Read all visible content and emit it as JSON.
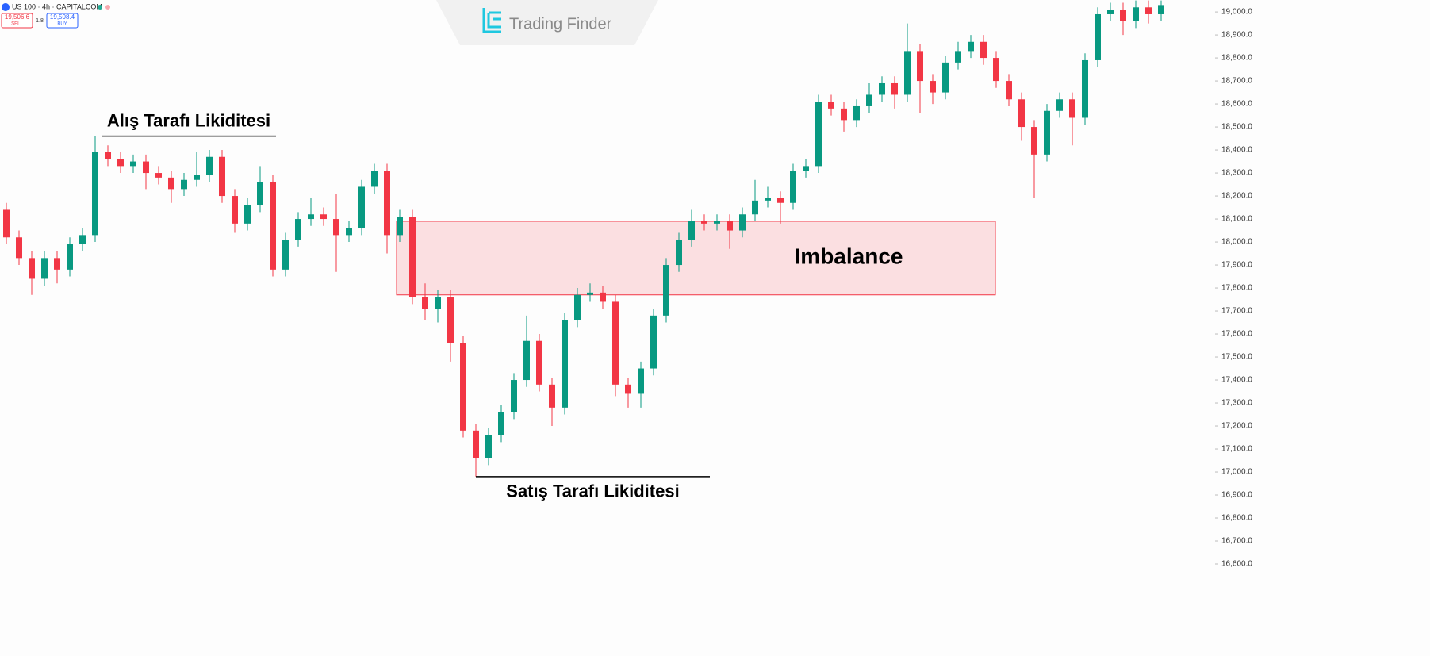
{
  "header": {
    "symbol": "US 100 · 4h · CAPITALCOM",
    "sell_price": "19,506.6",
    "sell_label": "SELL",
    "spread": "1.8",
    "buy_price": "19,508.4",
    "buy_label": "BUY",
    "logo": "Trading Finder"
  },
  "chart_data": {
    "type": "candlestick",
    "up_color": "#089981",
    "down_color": "#f23645",
    "ylim": [
      16200,
      19052
    ],
    "yticks": [
      {
        "value": 19000,
        "label": "19,000.0"
      },
      {
        "value": 18900,
        "label": "18,900.0"
      },
      {
        "value": 18800,
        "label": "18,800.0"
      },
      {
        "value": 18700,
        "label": "18,700.0"
      },
      {
        "value": 18600,
        "label": "18,600.0"
      },
      {
        "value": 18500,
        "label": "18,500.0"
      },
      {
        "value": 18400,
        "label": "18,400.0"
      },
      {
        "value": 18300,
        "label": "18,300.0"
      },
      {
        "value": 18200,
        "label": "18,200.0"
      },
      {
        "value": 18100,
        "label": "18,100.0"
      },
      {
        "value": 18000,
        "label": "18,000.0"
      },
      {
        "value": 17900,
        "label": "17,900.0"
      },
      {
        "value": 17800,
        "label": "17,800.0"
      },
      {
        "value": 17700,
        "label": "17,700.0"
      },
      {
        "value": 17600,
        "label": "17,600.0"
      },
      {
        "value": 17500,
        "label": "17,500.0"
      },
      {
        "value": 17400,
        "label": "17,400.0"
      },
      {
        "value": 17300,
        "label": "17,300.0"
      },
      {
        "value": 17200,
        "label": "17,200.0"
      },
      {
        "value": 17100,
        "label": "17,100.0"
      },
      {
        "value": 17000,
        "label": "17,000.0"
      },
      {
        "value": 16900,
        "label": "16,900.0"
      },
      {
        "value": 16800,
        "label": "16,800.0"
      },
      {
        "value": 16700,
        "label": "16,700.0"
      },
      {
        "value": 16600,
        "label": "16,600.0"
      }
    ],
    "open": [
      18140,
      18020,
      17930,
      17840,
      17930,
      17880,
      17990,
      18030,
      18390,
      18360,
      18330,
      18350,
      18300,
      18280,
      18230,
      18270,
      18290,
      18370,
      18200,
      18080,
      18160,
      18260,
      17880,
      18010,
      18100,
      18120,
      18100,
      18030,
      18060,
      18240,
      18310,
      18030,
      18110,
      17760,
      17710,
      17760,
      17560,
      17180,
      17060,
      17160,
      17260,
      17400,
      17570,
      17380,
      17280,
      17660,
      17770,
      17780,
      17740,
      17380,
      17340,
      17450,
      17680,
      17900,
      18010,
      18090,
      18080,
      18090,
      18050,
      18120,
      18180,
      18190,
      18170,
      18310,
      18330,
      18610,
      18580,
      18530,
      18590,
      18640,
      18690,
      18640,
      18830,
      18700,
      18650,
      18780,
      18830,
      18870,
      18800,
      18700,
      18620,
      18500,
      18380,
      18570,
      18620,
      18540,
      18790,
      18990,
      19010,
      18960,
      19020,
      18990
    ],
    "high": [
      18170,
      18050,
      17960,
      17960,
      17960,
      18020,
      18060,
      18460,
      18420,
      18390,
      18380,
      18380,
      18330,
      18310,
      18300,
      18390,
      18400,
      18400,
      18230,
      18190,
      18330,
      18290,
      18040,
      18130,
      18190,
      18150,
      18210,
      18090,
      18270,
      18340,
      18340,
      18140,
      18140,
      17820,
      17790,
      17790,
      17590,
      17210,
      17190,
      17290,
      17430,
      17680,
      17600,
      17410,
      17690,
      17800,
      17820,
      17810,
      17770,
      17410,
      17480,
      17710,
      17930,
      18040,
      18140,
      18120,
      18120,
      18120,
      18150,
      18270,
      18240,
      18220,
      18340,
      18360,
      18640,
      18640,
      18610,
      18620,
      18690,
      18720,
      18720,
      18950,
      18860,
      18730,
      18810,
      18870,
      18900,
      18900,
      18830,
      18730,
      18650,
      18530,
      18600,
      18650,
      18650,
      18820,
      19020,
      19040,
      19040,
      19050,
      19050,
      19050
    ],
    "low": [
      17990,
      17900,
      17770,
      17810,
      17820,
      17850,
      17960,
      18000,
      18330,
      18300,
      18300,
      18230,
      18250,
      18170,
      18200,
      18240,
      18260,
      18170,
      18040,
      18050,
      18130,
      17850,
      17850,
      17980,
      18070,
      18070,
      17870,
      18000,
      18030,
      18210,
      17950,
      18000,
      17730,
      17660,
      17650,
      17480,
      17150,
      16980,
      17030,
      17130,
      17230,
      17370,
      17350,
      17200,
      17250,
      17630,
      17740,
      17710,
      17330,
      17280,
      17280,
      17420,
      17650,
      17870,
      17980,
      18050,
      18050,
      17970,
      18020,
      18090,
      18150,
      18080,
      18140,
      18280,
      18300,
      18550,
      18480,
      18500,
      18560,
      18610,
      18580,
      18610,
      18560,
      18600,
      18620,
      18750,
      18800,
      18770,
      18670,
      18590,
      18440,
      18190,
      18350,
      18540,
      18420,
      18510,
      18760,
      18960,
      18900,
      18930,
      18950,
      18960
    ],
    "close": [
      18020,
      17930,
      17840,
      17930,
      17880,
      17990,
      18030,
      18390,
      18360,
      18330,
      18350,
      18300,
      18280,
      18230,
      18270,
      18290,
      18370,
      18200,
      18080,
      18160,
      18260,
      17880,
      18010,
      18100,
      18120,
      18100,
      18030,
      18060,
      18240,
      18310,
      18030,
      18110,
      17760,
      17710,
      17760,
      17560,
      17180,
      17060,
      17160,
      17260,
      17400,
      17570,
      17380,
      17280,
      17660,
      17770,
      17780,
      17740,
      17380,
      17340,
      17450,
      17680,
      17900,
      18010,
      18090,
      18080,
      18090,
      18050,
      18120,
      18180,
      18190,
      18170,
      18310,
      18330,
      18610,
      18580,
      18530,
      18590,
      18640,
      18690,
      18640,
      18830,
      18700,
      18650,
      18780,
      18830,
      18870,
      18800,
      18700,
      18620,
      18500,
      18380,
      18570,
      18620,
      18540,
      18790,
      18990,
      19010,
      18960,
      19020,
      18990,
      19030
    ],
    "annotations": [
      {
        "text": "Alış Tarafı Likiditesi",
        "value": 18460
      },
      {
        "text": "Satış Tarafı Likiditesi",
        "value": 16980
      }
    ],
    "zone": {
      "label": "Imbalance",
      "top": 18090,
      "bottom": 17770,
      "color": "#f23645"
    }
  }
}
